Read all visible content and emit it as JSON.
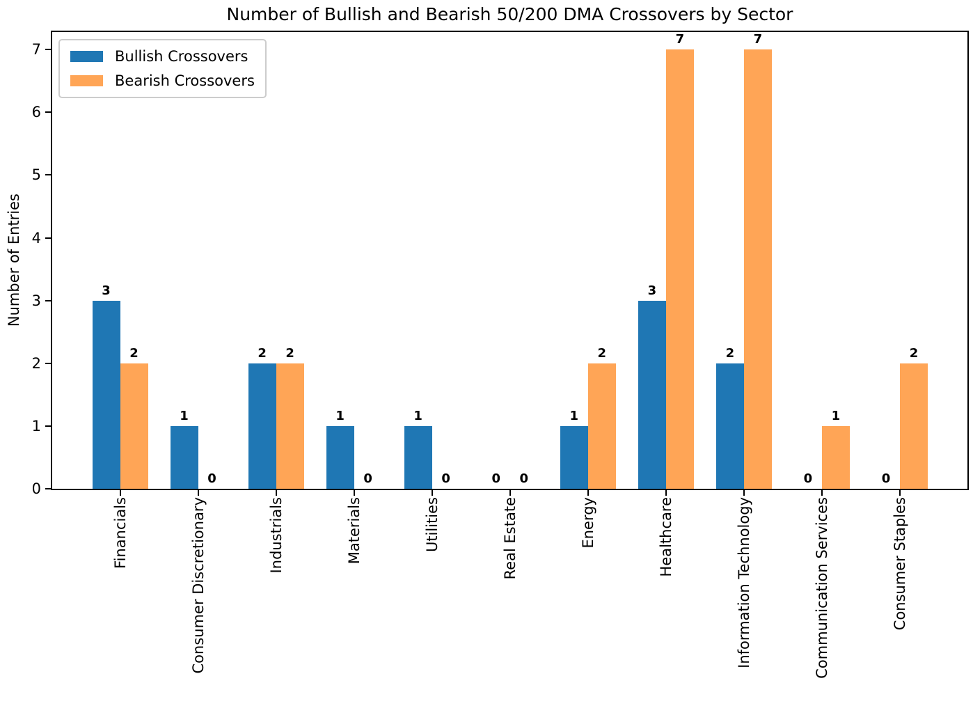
{
  "chart_data": {
    "type": "bar",
    "title": "Number of Bullish and Bearish 50/200 DMA Crossovers by Sector",
    "xlabel": "",
    "ylabel": "Number of Entries",
    "categories": [
      "Financials",
      "Consumer Discretionary",
      "Industrials",
      "Materials",
      "Utilities",
      "Real Estate",
      "Energy",
      "Healthcare",
      "Information Technology",
      "Communication Services",
      "Consumer Staples"
    ],
    "series": [
      {
        "name": "Bullish Crossovers",
        "color": "#1f77b4",
        "values": [
          3,
          1,
          2,
          1,
          1,
          0,
          1,
          3,
          2,
          0,
          0
        ]
      },
      {
        "name": "Bearish Crossovers",
        "color": "#ffa556",
        "values": [
          2,
          0,
          2,
          0,
          0,
          0,
          2,
          7,
          7,
          1,
          2
        ]
      }
    ],
    "yticks": [
      0,
      1,
      2,
      3,
      4,
      5,
      6,
      7
    ],
    "ylim": [
      0,
      7.28
    ],
    "grid": false,
    "legend_position": "upper left",
    "bar_value_labels": true,
    "axis_color": "#000000",
    "legend_border_color": "#cccccc"
  }
}
